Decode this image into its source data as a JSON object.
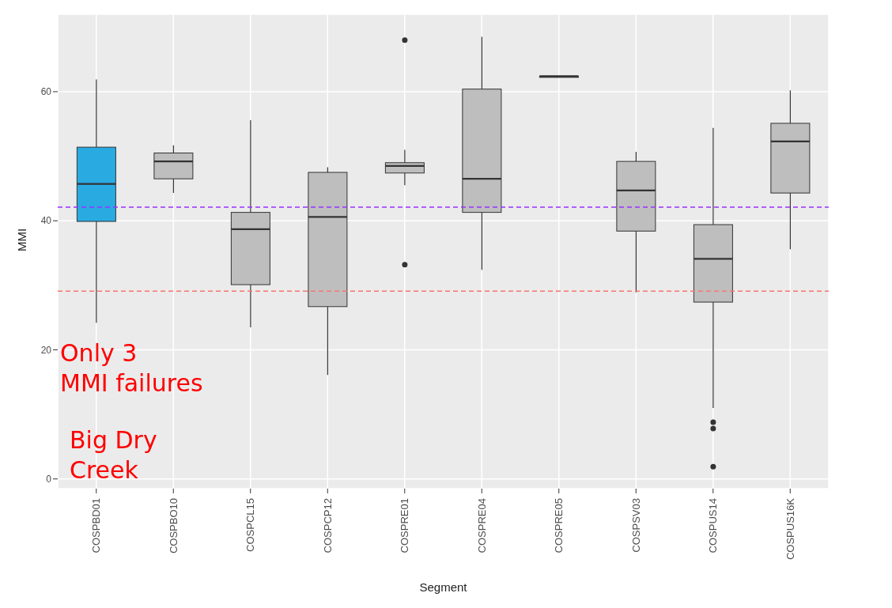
{
  "chart_data": {
    "type": "box",
    "xlabel": "Segment",
    "ylabel": "MMI",
    "categories": [
      "COSPBD01",
      "COSPBO10",
      "COSPCL15",
      "COSPCP12",
      "COSPRE01",
      "COSPRE04",
      "COSPRE05",
      "COSPSV03",
      "COSPUS14",
      "COSPUS16K"
    ],
    "colors": [
      "#29abe2",
      "#bebebe",
      "#bebebe",
      "#bebebe",
      "#bebebe",
      "#bebebe",
      "#333333",
      "#bebebe",
      "#bebebe",
      "#bebebe"
    ],
    "boxes": [
      {
        "low": 24.2,
        "q1": 39.9,
        "median": 45.7,
        "q3": 51.4,
        "high": 61.9
      },
      {
        "low": 44.3,
        "q1": 46.5,
        "median": 49.2,
        "q3": 50.5,
        "high": 51.7
      },
      {
        "low": 23.5,
        "q1": 30.1,
        "median": 38.7,
        "q3": 41.3,
        "high": 55.6
      },
      {
        "low": 16.1,
        "q1": 26.7,
        "median": 40.6,
        "q3": 47.5,
        "high": 48.3
      },
      {
        "low": 45.5,
        "q1": 47.4,
        "median": 48.5,
        "q3": 49,
        "high": 51,
        "outliers": [
          68,
          33.2
        ]
      },
      {
        "low": 32.4,
        "q1": 41.3,
        "median": 46.5,
        "q3": 60.4,
        "high": 68.5
      },
      {
        "low": 62.4,
        "q1": 62.4,
        "median": 62.4,
        "q3": 62.4,
        "high": 62.4
      },
      {
        "low": 28.9,
        "q1": 38.4,
        "median": 44.7,
        "q3": 49.2,
        "high": 50.7
      },
      {
        "low": 11,
        "q1": 27.4,
        "median": 34.1,
        "q3": 39.4,
        "high": 54.4,
        "outliers": [
          8.8,
          7.8,
          1.9
        ]
      },
      {
        "low": 35.6,
        "q1": 44.3,
        "median": 52.3,
        "q3": 55.1,
        "high": 60.2
      }
    ],
    "ylim": [
      -1.5,
      72
    ],
    "yticks": [
      0,
      20,
      40,
      60
    ],
    "grid": true,
    "ref_lines": [
      {
        "axis": "y",
        "value": 42.1,
        "color": "#9b30ff",
        "line_style": "dashed"
      },
      {
        "axis": "y",
        "value": 29.1,
        "color": "#f8766d",
        "line_style": "dashed"
      }
    ],
    "annotations": [
      "Only 3\nMMI failures",
      "Big Dry\nCreek"
    ]
  }
}
